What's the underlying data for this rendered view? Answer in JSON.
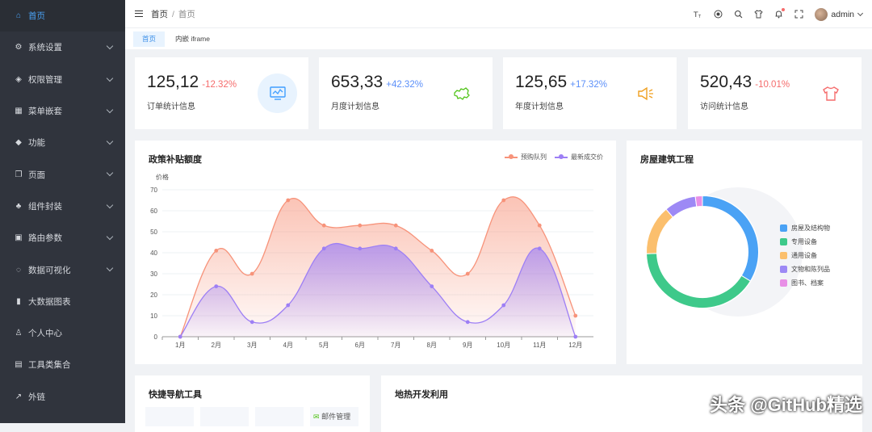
{
  "sidebar": {
    "items": [
      {
        "label": "首页",
        "icon": "home-icon",
        "glyph": "⌂",
        "active": true,
        "sub": false
      },
      {
        "label": "系统设置",
        "icon": "settings-icon",
        "glyph": "⚙",
        "sub": true
      },
      {
        "label": "权限管理",
        "icon": "shield-icon",
        "glyph": "◈",
        "sub": true
      },
      {
        "label": "菜单嵌套",
        "icon": "grid-icon",
        "glyph": "▦",
        "sub": true
      },
      {
        "label": "功能",
        "icon": "cube-icon",
        "glyph": "◆",
        "sub": true
      },
      {
        "label": "页面",
        "icon": "copy-icon",
        "glyph": "❐",
        "sub": true
      },
      {
        "label": "组件封装",
        "icon": "components-icon",
        "glyph": "♣",
        "sub": true
      },
      {
        "label": "路由参数",
        "icon": "route-icon",
        "glyph": "▣",
        "sub": true
      },
      {
        "label": "数据可视化",
        "icon": "chat-icon",
        "glyph": "◌",
        "sub": true
      },
      {
        "label": "大数据图表",
        "icon": "bar-chart-icon",
        "glyph": "▮",
        "sub": false
      },
      {
        "label": "个人中心",
        "icon": "user-icon",
        "glyph": "♙",
        "sub": false
      },
      {
        "label": "工具类集合",
        "icon": "toolbox-icon",
        "glyph": "▤",
        "sub": false
      },
      {
        "label": "外链",
        "icon": "external-link-icon",
        "glyph": "↗",
        "sub": false
      }
    ]
  },
  "header": {
    "breadcrumb": [
      "首页",
      "首页"
    ],
    "breadcrumb_sep": "/",
    "icons": [
      "font-size-icon",
      "github-icon",
      "search-icon",
      "theme-icon",
      "bell-icon",
      "fullscreen-icon"
    ],
    "user": "admin"
  },
  "tabs": [
    {
      "label": "首页",
      "active": true
    },
    {
      "label": "内嵌 iframe",
      "active": false
    }
  ],
  "stats": [
    {
      "value": "125,12",
      "pct": "-12.32%",
      "pct_color": "#f56c6c",
      "label": "订单统计信息",
      "icon": "monitor-icon",
      "icon_color": "#409eff",
      "icon_bg": "#e8f3fe"
    },
    {
      "value": "653,33",
      "pct": "+42.32%",
      "pct_color": "#5b8ff9",
      "label": "月度计划信息",
      "icon": "map-icon",
      "icon_color": "#52c41a",
      "icon_bg": "#ffffff"
    },
    {
      "value": "125,65",
      "pct": "+17.32%",
      "pct_color": "#5b8ff9",
      "label": "年度计划信息",
      "icon": "speaker-icon",
      "icon_color": "#f0a020",
      "icon_bg": "#ffffff"
    },
    {
      "value": "520,43",
      "pct": "-10.01%",
      "pct_color": "#f56c6c",
      "label": "访问统计信息",
      "icon": "shirt-icon",
      "icon_color": "#f56c6c",
      "icon_bg": "#ffffff"
    }
  ],
  "line_card": {
    "title": "政策补贴额度"
  },
  "donut_card": {
    "title": "房屋建筑工程"
  },
  "nav_card": {
    "title": "快捷导航工具",
    "partial_label": "邮件管理"
  },
  "geo_card": {
    "title": "地热开发利用"
  },
  "watermark": "头条 @GitHub精选",
  "chart_data": [
    {
      "type": "area",
      "ylabel": "价格",
      "ylim": [
        0,
        70
      ],
      "yticks": [
        0,
        10,
        20,
        30,
        40,
        50,
        60,
        70
      ],
      "categories": [
        "1月",
        "2月",
        "3月",
        "4月",
        "5月",
        "6月",
        "7月",
        "8月",
        "9月",
        "10月",
        "11月",
        "12月"
      ],
      "legend_position": "top-right",
      "series": [
        {
          "name": "预购队列",
          "color": "#f7937a",
          "values": [
            0,
            41,
            30,
            65,
            53,
            53,
            53,
            41,
            30,
            65,
            53,
            10
          ]
        },
        {
          "name": "最新成交价",
          "color": "#9d7ff5",
          "values": [
            0,
            24,
            7,
            15,
            42,
            42,
            42,
            24,
            7,
            15,
            42,
            0
          ]
        }
      ]
    },
    {
      "type": "pie",
      "categories": [
        "房屋及结构物",
        "专用设备",
        "通用设备",
        "文物和陈列品",
        "图书、档案"
      ],
      "colors": [
        "#4aa2f5",
        "#3ec98a",
        "#fbbf6d",
        "#9d89f5",
        "#e88fe6"
      ],
      "values": [
        33,
        40,
        14,
        9,
        2
      ],
      "legend_position": "right"
    }
  ]
}
